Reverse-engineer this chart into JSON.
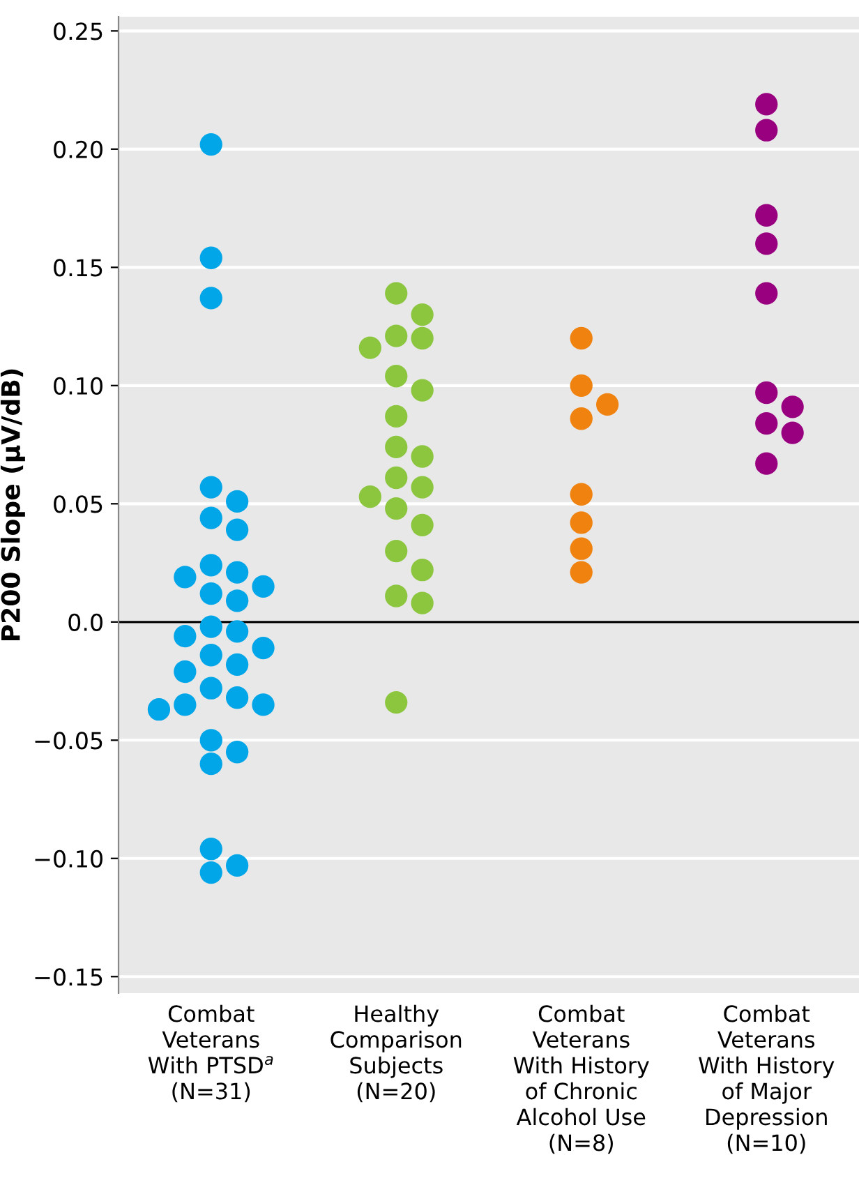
{
  "chart_data": {
    "type": "scatter",
    "ylabel": "P200 Slope (μV/dB)",
    "categories": [
      "Combat\nVeterans\nWith PTSD$^{a}$\n(N=31)",
      "Healthy\nComparison\nSubjects\n(N=20)",
      "Combat\nVeterans\nWith History\nof Chronic\nAlcohol Use\n(N=8)",
      "Combat\nVeterans\nWith History\nof Major\nDepression\n(N=10)"
    ],
    "series": [
      {
        "color": "#00a6e8",
        "x": [
          "Combat\nVeterans\nWith PTSD$^{a}$\n(N=31)",
          "Combat\nVeterans\nWith PTSD$^{a}$\n(N=31)",
          "Combat\nVeterans\nWith PTSD$^{a}$\n(N=31)",
          "Combat\nVeterans\nWith PTSD$^{a}$\n(N=31)",
          "Combat\nVeterans\nWith PTSD$^{a}$\n(N=31)",
          "Combat\nVeterans\nWith PTSD$^{a}$\n(N=31)",
          "Combat\nVeterans\nWith PTSD$^{a}$\n(N=31)",
          "Combat\nVeterans\nWith PTSD$^{a}$\n(N=31)",
          "Combat\nVeterans\nWith PTSD$^{a}$\n(N=31)",
          "Combat\nVeterans\nWith PTSD$^{a}$\n(N=31)",
          "Combat\nVeterans\nWith PTSD$^{a}$\n(N=31)",
          "Combat\nVeterans\nWith PTSD$^{a}$\n(N=31)",
          "Combat\nVeterans\nWith PTSD$^{a}$\n(N=31)",
          "Combat\nVeterans\nWith PTSD$^{a}$\n(N=31)",
          "Combat\nVeterans\nWith PTSD$^{a}$\n(N=31)",
          "Combat\nVeterans\nWith PTSD$^{a}$\n(N=31)",
          "Combat\nVeterans\nWith PTSD$^{a}$\n(N=31)",
          "Combat\nVeterans\nWith PTSD$^{a}$\n(N=31)",
          "Combat\nVeterans\nWith PTSD$^{a}$\n(N=31)",
          "Combat\nVeterans\nWith PTSD$^{a}$\n(N=31)",
          "Combat\nVeterans\nWith PTSD$^{a}$\n(N=31)",
          "Combat\nVeterans\nWith PTSD$^{a}$\n(N=31)",
          "Combat\nVeterans\nWith PTSD$^{a}$\n(N=31)",
          "Combat\nVeterans\nWith PTSD$^{a}$\n(N=31)",
          "Combat\nVeterans\nWith PTSD$^{a}$\n(N=31)",
          "Combat\nVeterans\nWith PTSD$^{a}$\n(N=31)",
          "Combat\nVeterans\nWith PTSD$^{a}$\n(N=31)",
          "Combat\nVeterans\nWith PTSD$^{a}$\n(N=31)",
          "Combat\nVeterans\nWith PTSD$^{a}$\n(N=31)",
          "Combat\nVeterans\nWith PTSD$^{a}$\n(N=31)",
          "Combat\nVeterans\nWith PTSD$^{a}$\n(N=31)"
        ],
        "values": [
          0.202,
          0.154,
          0.137,
          0.057,
          0.051,
          0.044,
          0.039,
          0.024,
          0.021,
          0.019,
          0.015,
          0.012,
          0.009,
          -0.002,
          -0.004,
          -0.006,
          -0.011,
          -0.014,
          -0.018,
          -0.021,
          -0.028,
          -0.032,
          -0.035,
          -0.035,
          -0.037,
          -0.05,
          -0.055,
          -0.06,
          -0.096,
          -0.103,
          -0.106
        ]
      },
      {
        "color": "#8cc63f",
        "x": [
          "Healthy\nComparison\nSubjects\n(N=20)",
          "Healthy\nComparison\nSubjects\n(N=20)",
          "Healthy\nComparison\nSubjects\n(N=20)",
          "Healthy\nComparison\nSubjects\n(N=20)",
          "Healthy\nComparison\nSubjects\n(N=20)",
          "Healthy\nComparison\nSubjects\n(N=20)",
          "Healthy\nComparison\nSubjects\n(N=20)",
          "Healthy\nComparison\nSubjects\n(N=20)",
          "Healthy\nComparison\nSubjects\n(N=20)",
          "Healthy\nComparison\nSubjects\n(N=20)",
          "Healthy\nComparison\nSubjects\n(N=20)",
          "Healthy\nComparison\nSubjects\n(N=20)",
          "Healthy\nComparison\nSubjects\n(N=20)",
          "Healthy\nComparison\nSubjects\n(N=20)",
          "Healthy\nComparison\nSubjects\n(N=20)",
          "Healthy\nComparison\nSubjects\n(N=20)",
          "Healthy\nComparison\nSubjects\n(N=20)",
          "Healthy\nComparison\nSubjects\n(N=20)",
          "Healthy\nComparison\nSubjects\n(N=20)",
          "Healthy\nComparison\nSubjects\n(N=20)"
        ],
        "values": [
          0.139,
          0.13,
          0.121,
          0.12,
          0.116,
          0.104,
          0.098,
          0.087,
          0.074,
          0.07,
          0.061,
          0.057,
          0.053,
          0.048,
          0.041,
          0.03,
          0.022,
          0.011,
          0.008,
          -0.034
        ]
      },
      {
        "color": "#f0820f",
        "x": [
          "Combat\nVeterans\nWith History\nof Chronic\nAlcohol Use\n(N=8)",
          "Combat\nVeterans\nWith History\nof Chronic\nAlcohol Use\n(N=8)",
          "Combat\nVeterans\nWith History\nof Chronic\nAlcohol Use\n(N=8)",
          "Combat\nVeterans\nWith History\nof Chronic\nAlcohol Use\n(N=8)",
          "Combat\nVeterans\nWith History\nof Chronic\nAlcohol Use\n(N=8)",
          "Combat\nVeterans\nWith History\nof Chronic\nAlcohol Use\n(N=8)",
          "Combat\nVeterans\nWith History\nof Chronic\nAlcohol Use\n(N=8)",
          "Combat\nVeterans\nWith History\nof Chronic\nAlcohol Use\n(N=8)"
        ],
        "values": [
          0.12,
          0.1,
          0.092,
          0.086,
          0.054,
          0.042,
          0.031,
          0.021
        ]
      },
      {
        "color": "#990080",
        "x": [
          "Combat\nVeterans\nWith History\nof Major\nDepression\n(N=10)",
          "Combat\nVeterans\nWith History\nof Major\nDepression\n(N=10)",
          "Combat\nVeterans\nWith History\nof Major\nDepression\n(N=10)",
          "Combat\nVeterans\nWith History\nof Major\nDepression\n(N=10)",
          "Combat\nVeterans\nWith History\nof Major\nDepression\n(N=10)",
          "Combat\nVeterans\nWith History\nof Major\nDepression\n(N=10)",
          "Combat\nVeterans\nWith History\nof Major\nDepression\n(N=10)",
          "Combat\nVeterans\nWith History\nof Major\nDepression\n(N=10)",
          "Combat\nVeterans\nWith History\nof Major\nDepression\n(N=10)",
          "Combat\nVeterans\nWith History\nof Major\nDepression\n(N=10)"
        ],
        "values": [
          0.219,
          0.208,
          0.172,
          0.16,
          0.139,
          0.097,
          0.091,
          0.084,
          0.08,
          0.067
        ]
      }
    ],
    "ylim": [
      -0.157,
      0.256
    ],
    "yticks": [
      0.25,
      {
        "value": 0.2,
        "label": "0.20"
      },
      0.15,
      {
        "value": 0.1,
        "label": "0.10"
      },
      0.05,
      {
        "value": 0,
        "label": "0.0"
      },
      {
        "value": -0.05,
        "label": "−0.05"
      },
      {
        "value": -0.1,
        "label": "−0.10"
      },
      {
        "value": -0.15,
        "label": "−0.15"
      }
    ],
    "ref_lines": [
      {
        "axis": "y",
        "value": 0,
        "color": "#000000"
      }
    ],
    "grid": "y",
    "marker": "circle",
    "legend": false
  }
}
